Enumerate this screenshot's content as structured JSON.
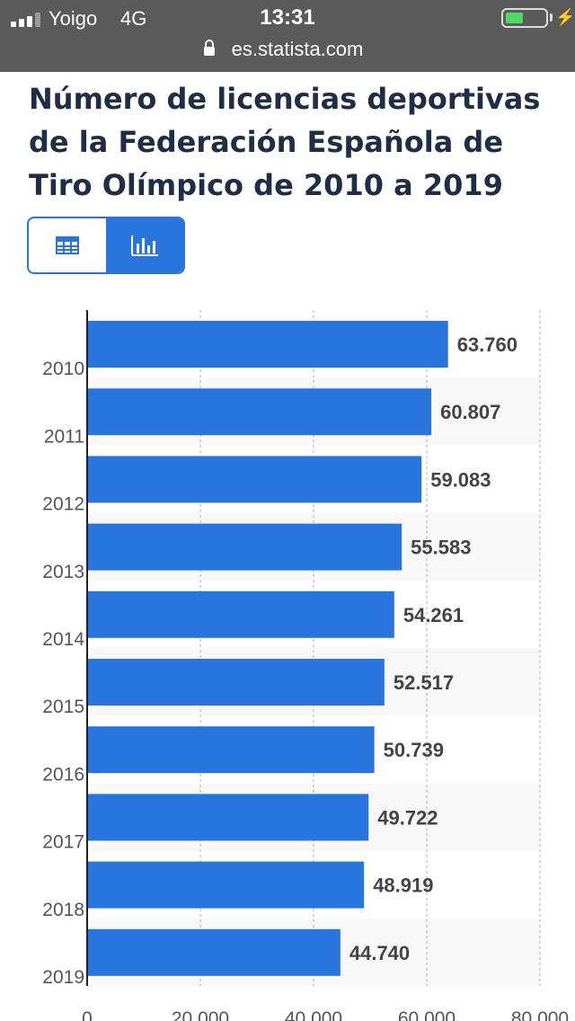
{
  "status_bar": {
    "carrier": "Yoigo",
    "network": "4G",
    "time": "13:31",
    "battery_level": 0.45,
    "url": "es.statista.com"
  },
  "page": {
    "title": "Número de licencias deportivas de la Federación Española de Tiro Olímpico de 2010 a 2019"
  },
  "view_toggle": {
    "options": [
      {
        "name": "table",
        "icon": "table-icon",
        "active": false
      },
      {
        "name": "chart",
        "icon": "bar-chart-icon",
        "active": true
      }
    ]
  },
  "colors": {
    "bar": "#2876dd",
    "accent": "#2876dd",
    "title": "#1f2e44",
    "status_bar": "#5a5a5a"
  },
  "chart_data": {
    "type": "bar",
    "orientation": "horizontal",
    "categories": [
      "2010",
      "2011",
      "2012",
      "2013",
      "2014",
      "2015",
      "2016",
      "2017",
      "2018",
      "2019"
    ],
    "values": [
      63760,
      60807,
      59083,
      55583,
      54261,
      52517,
      50739,
      49722,
      48919,
      44740
    ],
    "value_labels": [
      "63.760",
      "60.807",
      "59.083",
      "55.583",
      "54.261",
      "52.517",
      "50.739",
      "49.722",
      "48.919",
      "44.740"
    ],
    "xticks": [
      0,
      20000,
      40000,
      60000,
      80000
    ],
    "xtick_labels": [
      "0",
      "20.000",
      "40.000",
      "60.000",
      "80.000"
    ],
    "xlim": [
      0,
      80000
    ],
    "grid": true,
    "legend": "none"
  }
}
